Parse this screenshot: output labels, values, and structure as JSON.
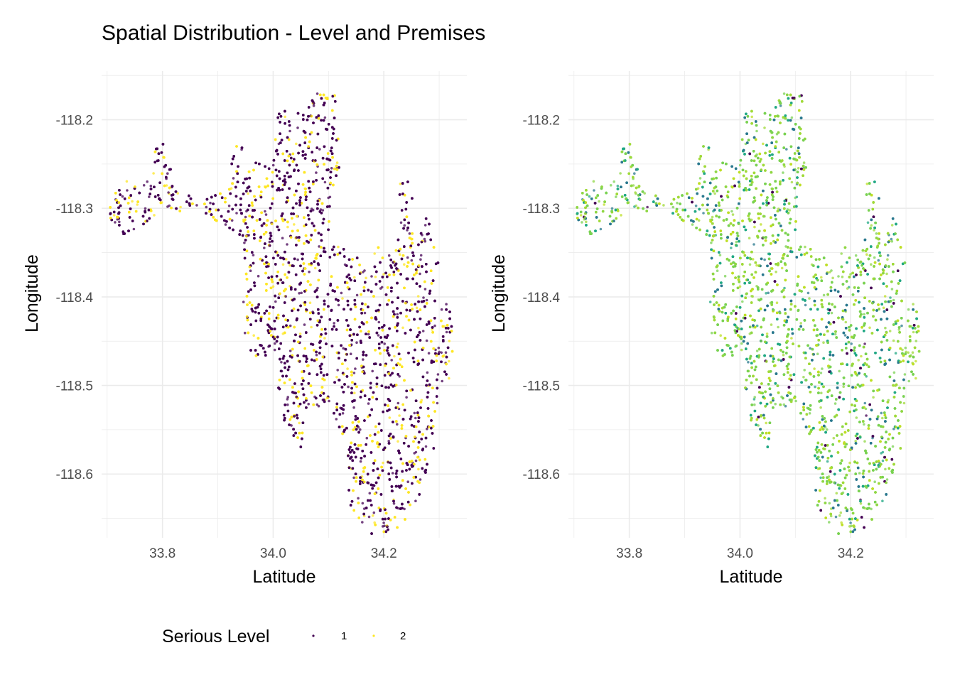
{
  "title": "Spatial Distribution - Level and Premises",
  "colors": {
    "level_1": "#440154",
    "level_2": "#FDE725",
    "premise_palette": [
      "#2A788E",
      "#22A884",
      "#7AD151",
      "#A0DA39",
      "#BDDF26",
      "#440154",
      "#8FD744"
    ],
    "grid": "#ebebeb",
    "tick": "#4d4d4d"
  },
  "legend": {
    "title": "Serious Level",
    "items": [
      "1",
      "2"
    ]
  },
  "chart_data": [
    {
      "type": "scatter",
      "panel": "left",
      "title": "Spatial Distribution - Level and Premises",
      "xlabel": "Latitude",
      "ylabel": "Longitude",
      "xlim": [
        33.69,
        34.35
      ],
      "ylim": [
        -118.672,
        -118.145
      ],
      "x_ticks": [
        33.8,
        34.0,
        34.2
      ],
      "x_tick_labels": [
        "33.8",
        "34.0",
        "34.2"
      ],
      "y_ticks": [
        -118.2,
        -118.3,
        -118.4,
        -118.5,
        -118.6
      ],
      "y_tick_labels": [
        "-118.2",
        "-118.3",
        "-118.4",
        "-118.5",
        "-118.6"
      ],
      "grid": true,
      "color_by": "Serious Level",
      "series": [
        {
          "name": "1",
          "color": "#440154",
          "approx_share": 0.7
        },
        {
          "name": "2",
          "color": "#FDE725",
          "approx_share": 0.3
        }
      ],
      "region_outline": [
        [
          33.71,
          -118.28
        ],
        [
          33.74,
          -118.26
        ],
        [
          33.78,
          -118.27
        ],
        [
          33.79,
          -118.22
        ],
        [
          33.82,
          -118.24
        ],
        [
          33.82,
          -118.28
        ],
        [
          33.87,
          -118.29
        ],
        [
          33.92,
          -118.28
        ],
        [
          33.92,
          -118.23
        ],
        [
          33.95,
          -118.23
        ],
        [
          33.95,
          -118.25
        ],
        [
          34.0,
          -118.24
        ],
        [
          34.01,
          -118.19
        ],
        [
          34.06,
          -118.19
        ],
        [
          34.08,
          -118.16
        ],
        [
          34.11,
          -118.16
        ],
        [
          34.12,
          -118.2
        ],
        [
          34.12,
          -118.27
        ],
        [
          34.1,
          -118.31
        ],
        [
          34.11,
          -118.34
        ],
        [
          34.17,
          -118.36
        ],
        [
          34.19,
          -118.34
        ],
        [
          34.2,
          -118.36
        ],
        [
          34.22,
          -118.34
        ],
        [
          34.23,
          -118.27
        ],
        [
          34.25,
          -118.27
        ],
        [
          34.26,
          -118.34
        ],
        [
          34.28,
          -118.3
        ],
        [
          34.3,
          -118.36
        ],
        [
          34.29,
          -118.42
        ],
        [
          34.32,
          -118.4
        ],
        [
          34.33,
          -118.5
        ],
        [
          34.3,
          -118.5
        ],
        [
          34.29,
          -118.58
        ],
        [
          34.26,
          -118.63
        ],
        [
          34.23,
          -118.66
        ],
        [
          34.18,
          -118.67
        ],
        [
          34.14,
          -118.64
        ],
        [
          34.13,
          -118.57
        ],
        [
          34.1,
          -118.52
        ],
        [
          34.06,
          -118.53
        ],
        [
          34.05,
          -118.57
        ],
        [
          34.01,
          -118.53
        ],
        [
          34.0,
          -118.46
        ],
        [
          33.97,
          -118.48
        ],
        [
          33.94,
          -118.43
        ],
        [
          33.95,
          -118.38
        ],
        [
          33.94,
          -118.33
        ],
        [
          33.86,
          -118.3
        ],
        [
          33.79,
          -118.31
        ],
        [
          33.73,
          -118.33
        ],
        [
          33.7,
          -118.31
        ]
      ]
    },
    {
      "type": "scatter",
      "panel": "right",
      "xlabel": "Latitude",
      "ylabel": "Longitude",
      "xlim": [
        33.69,
        34.35
      ],
      "ylim": [
        -118.672,
        -118.145
      ],
      "x_ticks": [
        33.8,
        34.0,
        34.2
      ],
      "x_tick_labels": [
        "33.8",
        "34.0",
        "34.2"
      ],
      "y_ticks": [
        -118.2,
        -118.3,
        -118.4,
        -118.5,
        -118.6
      ],
      "y_tick_labels": [
        "-118.2",
        "-118.3",
        "-118.4",
        "-118.5",
        "-118.6"
      ],
      "grid": true,
      "color_by": "Premises",
      "legend": "none"
    }
  ]
}
